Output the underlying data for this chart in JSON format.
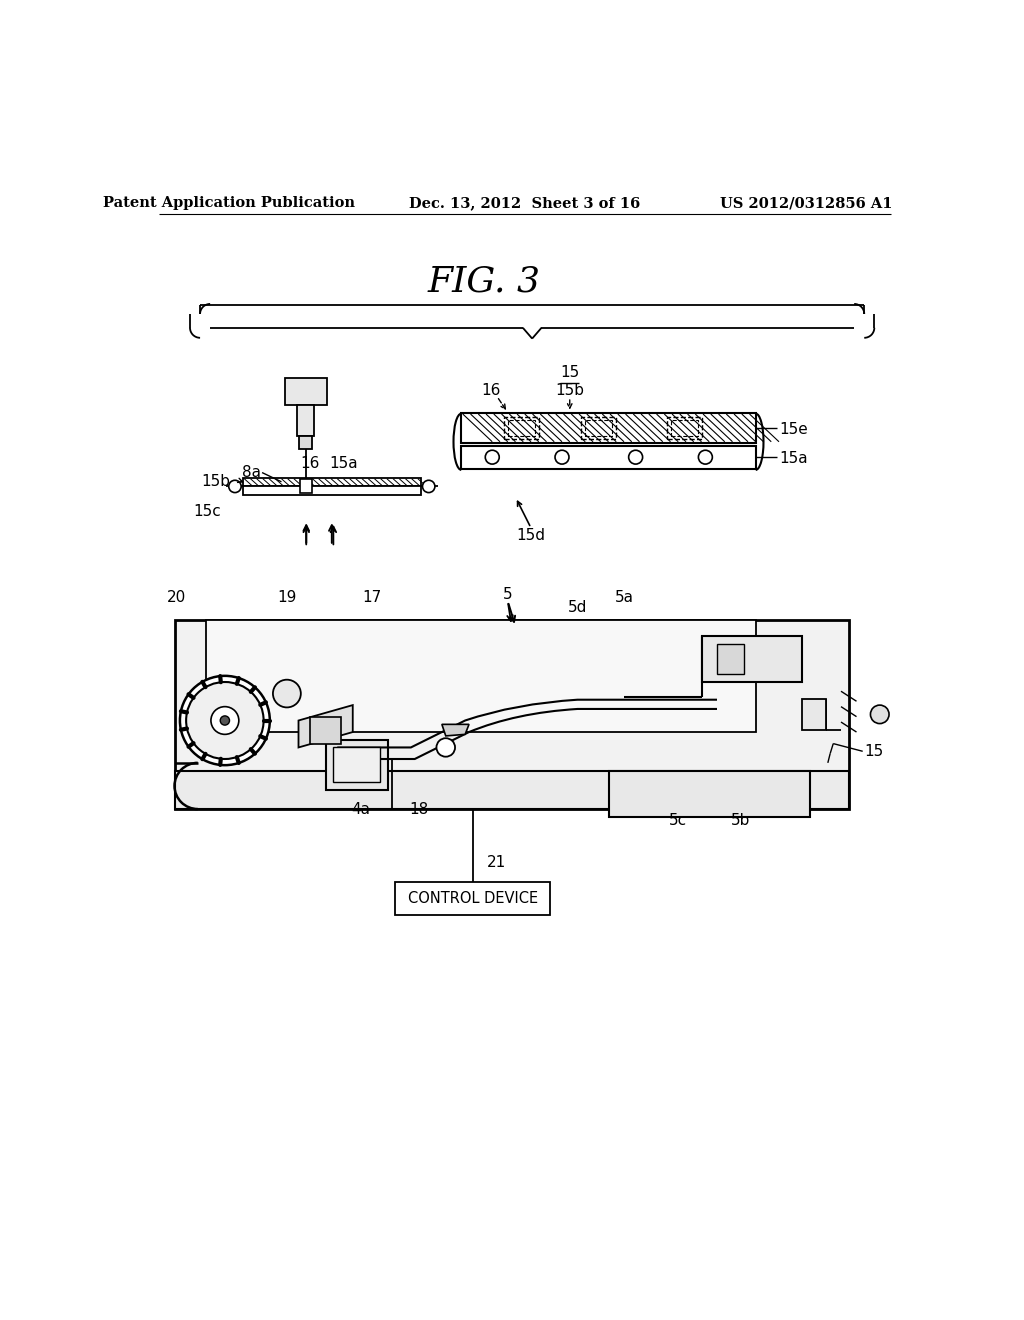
{
  "header_left": "Patent Application Publication",
  "header_center": "Dec. 13, 2012  Sheet 3 of 16",
  "header_right": "US 2012/0312856 A1",
  "figure_title": "FIG. 3",
  "background_color": "#ffffff",
  "line_color": "#000000"
}
